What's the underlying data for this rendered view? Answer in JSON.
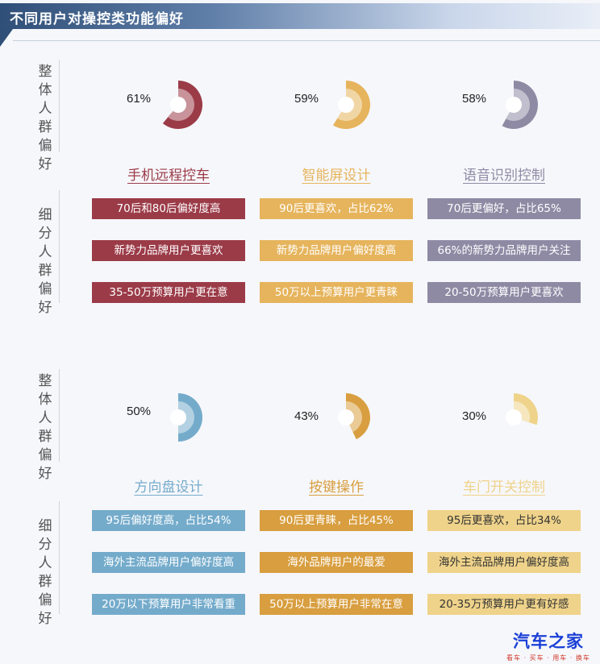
{
  "header": {
    "title": "不同用户对操控类功能偏好"
  },
  "labels": {
    "overall": [
      "整",
      "体",
      "人",
      "群",
      "偏",
      "好"
    ],
    "segment": [
      "细",
      "分",
      "人",
      "群",
      "偏",
      "好"
    ]
  },
  "colors": {
    "red": "#9b3b48",
    "gold": "#e6b45c",
    "purple": "#8f8aa4",
    "blue": "#74abcb",
    "orange": "#d89e3f",
    "yellow": "#efd38a"
  },
  "chart_data": [
    {
      "type": "pie",
      "categories": [
        "手机远程控车",
        "智能屏设计",
        "语音识别控制"
      ],
      "values": [
        61,
        59,
        58
      ],
      "value_labels": [
        "61%",
        "59%",
        "58%"
      ],
      "color_keys": [
        "red",
        "gold",
        "purple"
      ],
      "segments": [
        [
          "70后和80后偏好度高",
          "新势力品牌用户更喜欢",
          "35-50万预算用户更在意"
        ],
        [
          "90后更喜欢，占比62%",
          "新势力品牌用户偏好度高",
          "50万以上预算用户更青睐"
        ],
        [
          "70后更偏好，占比65%",
          "66%的新势力品牌用户关注",
          "20-50万预算用户更喜欢"
        ]
      ]
    },
    {
      "type": "pie",
      "categories": [
        "方向盘设计",
        "按键操作",
        "车门开关控制"
      ],
      "values": [
        50,
        43,
        30
      ],
      "value_labels": [
        "50%",
        "43%",
        "30%"
      ],
      "color_keys": [
        "blue",
        "orange",
        "yellow"
      ],
      "segments": [
        [
          "95后偏好度高，占比54%",
          "海外主流品牌用户偏好度高",
          "20万以下预算用户非常看重"
        ],
        [
          "90后更青睐，占比45%",
          "海外品牌用户的最爱",
          "50万以上预算用户非常在意"
        ],
        [
          "95后更喜欢，占比34%",
          "海外主流品牌用户偏好度高",
          "20-35万预算用户更有好感"
        ]
      ]
    }
  ],
  "logo": {
    "main": "汽车之家",
    "sub": "看车 · 买车 · 用车 · 换车"
  }
}
